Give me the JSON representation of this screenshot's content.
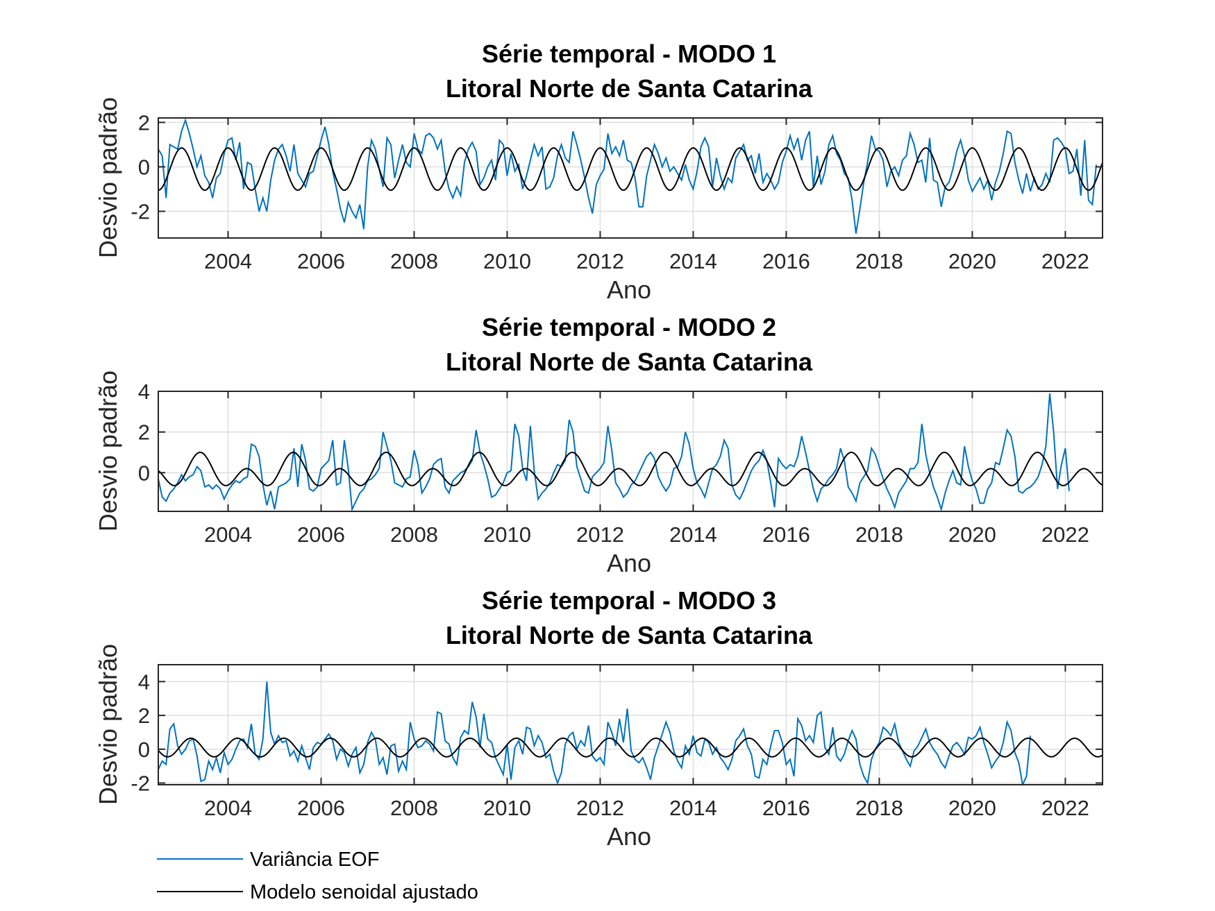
{
  "chart_data": [
    {
      "type": "line",
      "title": "Série temporal - MODO 1",
      "subtitle": "Litoral Norte de Santa Catarina",
      "xlabel": "Ano",
      "ylabel": "Desvio padrão",
      "xlim": [
        2002.5,
        2022.8
      ],
      "ylim": [
        -3.2,
        2.2
      ],
      "xticks": [
        "2004",
        "2006",
        "2008",
        "2010",
        "2012",
        "2014",
        "2016",
        "2018",
        "2020",
        "2022"
      ],
      "yticks": [
        "-2",
        "0",
        "2"
      ],
      "grid": true,
      "series": [
        {
          "name": "Variância EOF",
          "color": "#0072BD",
          "x_start": 2002.5,
          "x_step": 0.08333,
          "values": [
            0.8,
            0.5,
            -1.4,
            1.0,
            0.9,
            0.8,
            1.6,
            2.1,
            1.5,
            0.8,
            0.0,
            0.5,
            -0.4,
            -0.7,
            -1.4,
            -0.5,
            -0.3,
            0.6,
            1.2,
            1.3,
            0.3,
            1.1,
            -1.0,
            0.2,
            0.1,
            -1.0,
            -2.0,
            -1.4,
            -2.0,
            -0.6,
            0.3,
            0.8,
            1.0,
            0.5,
            -0.2,
            1.0,
            -0.3,
            -0.6,
            -0.9,
            -0.3,
            -0.2,
            0.5,
            1.2,
            1.8,
            1.0,
            -0.2,
            -1.0,
            -1.9,
            -2.5,
            -1.6,
            -2.0,
            -2.3,
            -1.7,
            -2.8,
            0.0,
            1.2,
            0.8,
            -0.1,
            -0.9,
            1.3,
            1.0,
            -0.5,
            0.3,
            1.0,
            0.2,
            0.0,
            1.5,
            0.8,
            0.6,
            1.4,
            1.5,
            1.3,
            0.8,
            1.2,
            -0.2,
            -1.0,
            -1.4,
            -0.9,
            -1.3,
            0.2,
            0.8,
            1.1,
            0.7,
            -0.8,
            -0.5,
            0.0,
            0.3,
            -0.6,
            1.2,
            1.0,
            -0.4,
            0.6,
            -0.2,
            0.1,
            -1.0,
            -0.4,
            0.3,
            1.0,
            0.5,
            0.9,
            -1.0,
            -0.9,
            -0.5,
            0.5,
            1.0,
            0.4,
            0.2,
            1.6,
            1.0,
            0.3,
            -0.5,
            -1.4,
            -2.1,
            -0.8,
            -0.4,
            -0.1,
            1.5,
            0.6,
            0.9,
            0.5,
            1.2,
            0.3,
            0.2,
            -0.5,
            -1.8,
            -1.8,
            -0.4,
            0.3,
            1.0,
            0.6,
            0.0,
            0.4,
            -0.2,
            0.0,
            -0.3,
            -0.6,
            0.1,
            -0.6,
            -1.0,
            -0.2,
            0.9,
            1.3,
            0.9,
            -0.9,
            0.4,
            -0.4,
            -1.0,
            -0.5,
            -0.7,
            0.4,
            0.7,
            1.0,
            0.3,
            0.5,
            -0.3,
            0.6,
            -0.7,
            -0.3,
            -0.6,
            -1.0,
            -0.7,
            0.2,
            0.7,
            1.4,
            0.8,
            1.3,
            0.3,
            1.2,
            1.6,
            -0.9,
            0.5,
            -0.8,
            -0.2,
            1.0,
            1.4,
            0.6,
            0.3,
            -0.3,
            -0.5,
            -1.5,
            -3.0,
            -1.9,
            -0.7,
            0.2,
            1.4,
            0.8,
            0.7,
            0.3,
            -0.9,
            -0.2,
            0.0,
            -0.4,
            0.3,
            0.5,
            1.5,
            1.0,
            0.2,
            0.3,
            -0.7,
            1.3,
            -0.6,
            -0.7,
            -1.8,
            -0.9,
            -0.7,
            -0.1,
            0.7,
            1.2,
            0.5,
            -0.6,
            -1.1,
            -0.8,
            -0.5,
            -1.0,
            -0.6,
            -1.5,
            -0.7,
            -0.2,
            0.6,
            1.6,
            1.5,
            0.2,
            -0.6,
            -1.2,
            -0.3,
            -1.1,
            -0.5,
            -1.0,
            -0.8,
            -0.3,
            -0.7,
            1.2,
            1.3,
            1.1,
            0.8,
            -0.3,
            -0.2,
            0.8,
            -1.3,
            1.2,
            -1.5,
            -1.7,
            0.1
          ]
        },
        {
          "name": "Modelo senoidal ajustado",
          "color": "#000000",
          "amplitude": 0.95,
          "offset": -0.1,
          "period": 1.0,
          "peak": 2003.0
        }
      ]
    },
    {
      "type": "line",
      "title": "Série temporal - MODO 2",
      "subtitle": "Litoral Norte de Santa Catarina",
      "xlabel": "Ano",
      "ylabel": "Desvio padrão",
      "xlim": [
        2002.5,
        2022.8
      ],
      "ylim": [
        -1.9,
        4.0
      ],
      "xticks": [
        "2004",
        "2006",
        "2008",
        "2010",
        "2012",
        "2014",
        "2016",
        "2018",
        "2020",
        "2022"
      ],
      "yticks": [
        "0",
        "2",
        "4"
      ],
      "grid": true,
      "series": [
        {
          "name": "Variância EOF",
          "color": "#0072BD",
          "x_start": 2002.5,
          "x_step": 0.08333,
          "values": [
            -0.3,
            -1.2,
            -1.4,
            -1.0,
            -0.8,
            -0.5,
            -0.1,
            -0.4,
            -0.2,
            -0.1,
            0.3,
            0.1,
            -0.7,
            -0.6,
            -0.8,
            -0.6,
            -0.8,
            -1.3,
            -0.9,
            -0.6,
            -0.4,
            -0.5,
            -0.3,
            -0.2,
            1.4,
            1.3,
            0.8,
            -0.6,
            -1.6,
            -0.9,
            -1.8,
            -0.7,
            -0.6,
            -0.5,
            -0.3,
            1.2,
            -0.7,
            1.4,
            0.6,
            -0.8,
            -0.9,
            -0.7,
            0.2,
            0.4,
            0.6,
            1.6,
            -0.6,
            -0.5,
            1.6,
            0.2,
            -1.8,
            -1.4,
            -1.0,
            -0.8,
            -0.4,
            -0.3,
            -0.1,
            0.2,
            2.0,
            1.3,
            0.6,
            -0.5,
            -0.6,
            -0.7,
            -0.3,
            -0.2,
            1.1,
            0.4,
            -1.0,
            -0.7,
            -0.3,
            0.4,
            0.6,
            0.7,
            -0.7,
            -1.0,
            -0.4,
            -0.2,
            0.0,
            0.1,
            0.3,
            0.6,
            2.1,
            1.0,
            0.4,
            -0.3,
            -1.2,
            -1.1,
            -0.8,
            -0.5,
            0.0,
            0.1,
            2.4,
            1.8,
            0.2,
            -0.4,
            2.3,
            0.1,
            -1.3,
            -1.0,
            -0.8,
            -0.5,
            0.0,
            0.4,
            0.3,
            0.6,
            2.6,
            2.0,
            0.3,
            -0.3,
            -0.9,
            -1.0,
            -0.2,
            0.0,
            0.2,
            0.5,
            2.3,
            1.1,
            -0.5,
            -0.8,
            -1.2,
            -1.0,
            -0.6,
            -0.4,
            0.0,
            0.4,
            0.8,
            1.0,
            0.7,
            -0.2,
            -0.6,
            -0.9,
            -0.6,
            0.2,
            0.3,
            0.8,
            2.0,
            1.4,
            0.2,
            -0.5,
            -0.8,
            -1.2,
            -0.5,
            0.2,
            0.4,
            0.8,
            1.6,
            1.2,
            -0.6,
            -1.1,
            -1.3,
            -0.9,
            -0.4,
            0.1,
            0.4,
            0.6,
            1.1,
            0.6,
            -0.5,
            -1.7,
            0.7,
            0.4,
            0.2,
            0.4,
            0.3,
            0.8,
            1.8,
            1.0,
            0.1,
            -0.8,
            -1.4,
            -0.8,
            -0.6,
            -0.3,
            -0.1,
            0.2,
            1.2,
            0.6,
            -0.7,
            -1.0,
            -1.4,
            -0.5,
            -0.2,
            0.1,
            1.2,
            0.9,
            0.3,
            -0.3,
            -0.8,
            -1.2,
            -1.7,
            -1.0,
            -0.7,
            -0.4,
            0.2,
            0.2,
            0.5,
            2.4,
            0.9,
            0.0,
            -0.7,
            -1.2,
            -1.8,
            -1.0,
            -0.4,
            0.1,
            -0.5,
            -0.6,
            1.3,
            0.3,
            -0.4,
            -0.8,
            -1.5,
            -1.5,
            -0.8,
            -0.5,
            0.5,
            0.4,
            1.2,
            2.1,
            1.8,
            0.8,
            -0.9,
            -1.0,
            -0.8,
            -0.7,
            -0.5,
            -0.2,
            0.4,
            1.3,
            3.9,
            2.0,
            -0.8,
            0.4,
            1.2,
            -0.9
          ]
        },
        {
          "name": "Modelo senoidal ajustado",
          "color": "#000000",
          "harmonics": [
            0.6,
            0.4
          ],
          "offset": 0.0,
          "period": 2.0,
          "peak": 2003.4
        }
      ]
    },
    {
      "type": "line",
      "title": "Série temporal - MODO 3",
      "subtitle": "Litoral Norte de Santa Catarina",
      "xlabel": "Ano",
      "ylabel": "Desvio padrão",
      "xlim": [
        2002.5,
        2022.8
      ],
      "ylim": [
        -2.1,
        5.0
      ],
      "xticks": [
        "2004",
        "2006",
        "2008",
        "2010",
        "2012",
        "2014",
        "2016",
        "2018",
        "2020",
        "2022"
      ],
      "yticks": [
        "-2",
        "0",
        "2",
        "4"
      ],
      "grid": true,
      "series": [
        {
          "name": "Variância EOF",
          "color": "#0072BD",
          "x_start": 2002.5,
          "x_step": 0.08333,
          "values": [
            -1.2,
            -0.7,
            -0.9,
            1.2,
            1.5,
            0.2,
            -0.3,
            0.0,
            0.5,
            0.6,
            -0.4,
            -1.9,
            -1.8,
            -0.7,
            -1.2,
            -0.5,
            -1.4,
            -0.2,
            -0.9,
            -0.6,
            0.0,
            0.5,
            0.6,
            0.1,
            1.5,
            -0.3,
            -0.6,
            0.6,
            4.0,
            1.0,
            0.3,
            0.8,
            0.4,
            0.5,
            -0.4,
            -0.1,
            -0.7,
            0.2,
            -0.5,
            -1.2,
            0.1,
            0.4,
            0.3,
            0.6,
            0.9,
            0.5,
            -0.6,
            0.0,
            -0.2,
            -1.0,
            -0.3,
            0.1,
            -1.4,
            -0.9,
            0.4,
            1.0,
            0.6,
            -0.9,
            -0.5,
            -1.5,
            0.2,
            0.3,
            -1.3,
            -0.7,
            -1.2,
            1.6,
            0.6,
            0.1,
            0.2,
            0.5,
            0.3,
            -0.1,
            2.2,
            2.1,
            0.5,
            0.3,
            -0.5,
            -0.9,
            0.7,
            1.1,
            0.9,
            2.8,
            1.9,
            0.1,
            2.1,
            0.6,
            0.4,
            -0.5,
            -1.0,
            -1.5,
            0.3,
            -1.8,
            0.1,
            0.5,
            -0.3,
            1.3,
            1.2,
            0.2,
            0.8,
            0.4,
            -0.5,
            -0.3,
            -1.3,
            -2.0,
            -1.4,
            0.3,
            0.8,
            1.0,
            0.0,
            0.5,
            0.2,
            1.4,
            -0.4,
            -0.7,
            -0.5,
            -0.9,
            1.6,
            1.0,
            0.2,
            1.8,
            0.4,
            2.4,
            -0.1,
            -0.6,
            -0.8,
            -0.5,
            -1.1,
            -1.8,
            -0.5,
            0.2,
            0.9,
            1.6,
            1.0,
            -0.1,
            -0.7,
            -1.1,
            0.2,
            -0.3,
            0.8,
            -0.2,
            -0.4,
            0.6,
            0.4,
            -0.3,
            0.1,
            -0.5,
            -0.8,
            -1.2,
            -0.6,
            0.5,
            0.8,
            1.2,
            0.2,
            -0.3,
            -1.6,
            -1.7,
            -0.6,
            -0.9,
            0.2,
            1.1,
            1.1,
            0.4,
            -0.9,
            -0.6,
            -1.6,
            1.8,
            1.4,
            0.5,
            0.8,
            0.4,
            2.0,
            2.2,
            0.1,
            -0.3,
            1.3,
            -0.4,
            -0.7,
            -0.3,
            0.5,
            1.1,
            0.6,
            -0.9,
            -1.6,
            -2.0,
            -0.6,
            0.0,
            0.4,
            1.3,
            1.1,
            0.8,
            1.5,
            0.4,
            -0.1,
            -0.6,
            -1.0,
            -0.1,
            0.2,
            0.7,
            1.2,
            0.4,
            0.0,
            -0.3,
            -0.8,
            -1.1,
            -0.4,
            0.2,
            0.4,
            0.1,
            -0.3,
            0.7,
            0.6,
            0.8,
            1.3,
            0.4,
            -0.3,
            -1.1,
            -0.7,
            -0.4,
            0.4,
            1.6,
            1.1,
            -0.2,
            -0.8,
            -2.1,
            -1.6,
            0.8
          ]
        },
        {
          "name": "Modelo senoidal ajustado",
          "color": "#000000",
          "amplitude": 0.55,
          "offset": 0.1,
          "period": 1.0,
          "peak": 2003.2
        }
      ]
    }
  ],
  "legend": {
    "placement": "bottom-left",
    "items": [
      {
        "label": "Variância EOF",
        "color": "#0072BD"
      },
      {
        "label": "Modelo senoidal ajustado",
        "color": "#000000"
      }
    ]
  }
}
